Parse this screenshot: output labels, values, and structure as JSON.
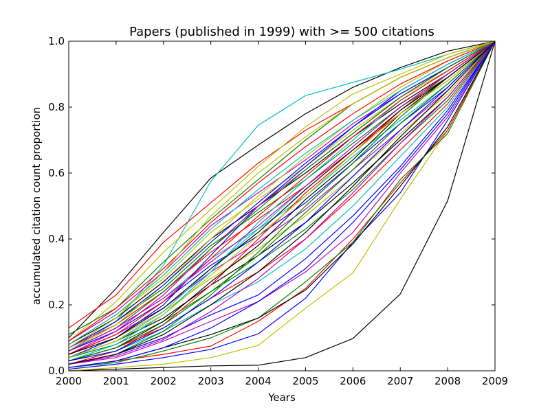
{
  "chart_data": {
    "type": "line",
    "title": "Papers (published in 1999) with >= 500 citations",
    "xlabel": "Years",
    "ylabel": "accumulated citation count proportion",
    "x": [
      2000,
      2001,
      2002,
      2003,
      2004,
      2005,
      2006,
      2007,
      2008,
      2009
    ],
    "xlim": [
      2000,
      2009
    ],
    "ylim": [
      0.0,
      1.0
    ],
    "xticks": [
      "2000",
      "2001",
      "2002",
      "2003",
      "2004",
      "2005",
      "2006",
      "2007",
      "2008",
      "2009"
    ],
    "yticks": [
      "0.0",
      "0.2",
      "0.4",
      "0.6",
      "0.8",
      "1.0"
    ],
    "grid": false,
    "legend": "none",
    "series": [
      {
        "color": "#000000",
        "values": [
          0.0,
          0.005,
          0.01,
          0.015,
          0.017,
          0.04,
          0.098,
          0.233,
          0.516,
          1.0
        ]
      },
      {
        "color": "#000000",
        "values": [
          0.1,
          0.25,
          0.42,
          0.585,
          0.685,
          0.78,
          0.86,
          0.92,
          0.97,
          1.0
        ]
      },
      {
        "color": "#00bfbf",
        "values": [
          0.06,
          0.15,
          0.32,
          0.575,
          0.745,
          0.835,
          0.875,
          0.915,
          0.96,
          1.0
        ]
      },
      {
        "color": "#ff0000",
        "values": [
          0.13,
          0.23,
          0.39,
          0.51,
          0.63,
          0.73,
          0.81,
          0.89,
          0.95,
          1.0
        ]
      },
      {
        "color": "#bfbf00",
        "values": [
          0.09,
          0.21,
          0.36,
          0.49,
          0.62,
          0.74,
          0.84,
          0.9,
          0.96,
          1.0
        ]
      },
      {
        "color": "#008000",
        "values": [
          0.11,
          0.19,
          0.33,
          0.46,
          0.58,
          0.7,
          0.81,
          0.89,
          0.95,
          1.0
        ]
      },
      {
        "color": "#bfbf00",
        "values": [
          0.0,
          0.01,
          0.02,
          0.04,
          0.077,
          0.19,
          0.297,
          0.52,
          0.73,
          1.0
        ]
      },
      {
        "color": "#0000ff",
        "values": [
          0.005,
          0.02,
          0.04,
          0.065,
          0.112,
          0.22,
          0.39,
          0.54,
          0.76,
          1.0
        ]
      },
      {
        "color": "#ff0000",
        "values": [
          0.01,
          0.03,
          0.05,
          0.075,
          0.15,
          0.25,
          0.4,
          0.57,
          0.73,
          1.0
        ]
      },
      {
        "color": "#008000",
        "values": [
          0.01,
          0.025,
          0.06,
          0.1,
          0.16,
          0.27,
          0.39,
          0.58,
          0.72,
          1.0
        ]
      },
      {
        "color": "#000000",
        "values": [
          0.01,
          0.03,
          0.07,
          0.11,
          0.16,
          0.245,
          0.385,
          0.56,
          0.74,
          1.0
        ]
      },
      {
        "color": "#bf00bf",
        "values": [
          0.02,
          0.04,
          0.09,
          0.15,
          0.21,
          0.3,
          0.42,
          0.6,
          0.77,
          1.0
        ]
      },
      {
        "color": "#0000ff",
        "values": [
          0.02,
          0.05,
          0.1,
          0.17,
          0.23,
          0.34,
          0.47,
          0.62,
          0.79,
          1.0
        ]
      },
      {
        "color": "#00bfbf",
        "values": [
          0.03,
          0.06,
          0.12,
          0.2,
          0.27,
          0.37,
          0.5,
          0.65,
          0.8,
          1.0
        ]
      },
      {
        "color": "#ff0000",
        "values": [
          0.03,
          0.07,
          0.13,
          0.22,
          0.3,
          0.4,
          0.53,
          0.67,
          0.81,
          1.0
        ]
      },
      {
        "color": "#008000",
        "values": [
          0.04,
          0.08,
          0.15,
          0.24,
          0.33,
          0.43,
          0.55,
          0.69,
          0.82,
          1.0
        ]
      },
      {
        "color": "#000000",
        "values": [
          0.04,
          0.09,
          0.16,
          0.26,
          0.35,
          0.45,
          0.57,
          0.7,
          0.83,
          1.0
        ]
      },
      {
        "color": "#bfbf00",
        "values": [
          0.05,
          0.1,
          0.18,
          0.28,
          0.37,
          0.47,
          0.59,
          0.72,
          0.84,
          1.0
        ]
      },
      {
        "color": "#bf00bf",
        "values": [
          0.05,
          0.11,
          0.19,
          0.3,
          0.39,
          0.49,
          0.61,
          0.73,
          0.85,
          1.0
        ]
      },
      {
        "color": "#0000ff",
        "values": [
          0.06,
          0.12,
          0.21,
          0.32,
          0.41,
          0.51,
          0.63,
          0.75,
          0.86,
          1.0
        ]
      },
      {
        "color": "#00bfbf",
        "values": [
          0.06,
          0.13,
          0.22,
          0.34,
          0.43,
          0.53,
          0.65,
          0.76,
          0.87,
          1.0
        ]
      },
      {
        "color": "#ff0000",
        "values": [
          0.07,
          0.14,
          0.24,
          0.36,
          0.46,
          0.56,
          0.67,
          0.78,
          0.88,
          1.0
        ]
      },
      {
        "color": "#008000",
        "values": [
          0.07,
          0.15,
          0.25,
          0.38,
          0.48,
          0.58,
          0.69,
          0.8,
          0.89,
          1.0
        ]
      },
      {
        "color": "#000000",
        "values": [
          0.08,
          0.16,
          0.27,
          0.4,
          0.5,
          0.6,
          0.71,
          0.81,
          0.9,
          1.0
        ]
      },
      {
        "color": "#bfbf00",
        "values": [
          0.08,
          0.17,
          0.28,
          0.42,
          0.52,
          0.62,
          0.73,
          0.83,
          0.91,
          1.0
        ]
      },
      {
        "color": "#bf00bf",
        "values": [
          0.09,
          0.18,
          0.3,
          0.44,
          0.54,
          0.64,
          0.75,
          0.84,
          0.92,
          1.0
        ]
      },
      {
        "color": "#0000ff",
        "values": [
          0.04,
          0.1,
          0.2,
          0.35,
          0.5,
          0.62,
          0.74,
          0.85,
          0.93,
          1.0
        ]
      },
      {
        "color": "#00bfbf",
        "values": [
          0.03,
          0.08,
          0.17,
          0.3,
          0.45,
          0.58,
          0.7,
          0.82,
          0.91,
          1.0
        ]
      },
      {
        "color": "#ff0000",
        "values": [
          0.02,
          0.06,
          0.14,
          0.26,
          0.4,
          0.54,
          0.66,
          0.79,
          0.9,
          1.0
        ]
      },
      {
        "color": "#008000",
        "values": [
          0.02,
          0.05,
          0.12,
          0.23,
          0.36,
          0.5,
          0.63,
          0.77,
          0.89,
          1.0
        ]
      },
      {
        "color": "#000000",
        "values": [
          0.03,
          0.07,
          0.15,
          0.27,
          0.38,
          0.52,
          0.64,
          0.78,
          0.89,
          1.0
        ]
      },
      {
        "color": "#bfbf00",
        "values": [
          0.06,
          0.14,
          0.26,
          0.4,
          0.53,
          0.65,
          0.76,
          0.86,
          0.94,
          1.0
        ]
      },
      {
        "color": "#bf00bf",
        "values": [
          0.05,
          0.12,
          0.23,
          0.37,
          0.5,
          0.61,
          0.72,
          0.83,
          0.92,
          1.0
        ]
      },
      {
        "color": "#0000ff",
        "values": [
          0.07,
          0.15,
          0.26,
          0.39,
          0.51,
          0.63,
          0.74,
          0.84,
          0.92,
          1.0
        ]
      },
      {
        "color": "#00bfbf",
        "values": [
          0.04,
          0.09,
          0.18,
          0.31,
          0.43,
          0.56,
          0.68,
          0.8,
          0.9,
          1.0
        ]
      },
      {
        "color": "#ff0000",
        "values": [
          0.05,
          0.11,
          0.21,
          0.34,
          0.47,
          0.59,
          0.71,
          0.82,
          0.91,
          1.0
        ]
      },
      {
        "color": "#008000",
        "values": [
          0.06,
          0.13,
          0.24,
          0.37,
          0.49,
          0.61,
          0.72,
          0.83,
          0.92,
          1.0
        ]
      },
      {
        "color": "#0000ff",
        "values": [
          0.01,
          0.03,
          0.07,
          0.13,
          0.21,
          0.31,
          0.45,
          0.61,
          0.78,
          1.0
        ]
      },
      {
        "color": "#bf00bf",
        "values": [
          0.02,
          0.045,
          0.095,
          0.18,
          0.28,
          0.4,
          0.54,
          0.69,
          0.83,
          1.0
        ]
      },
      {
        "color": "#bfbf00",
        "values": [
          0.04,
          0.09,
          0.17,
          0.29,
          0.41,
          0.53,
          0.66,
          0.78,
          0.88,
          1.0
        ]
      },
      {
        "color": "#000000",
        "values": [
          0.05,
          0.1,
          0.19,
          0.31,
          0.42,
          0.55,
          0.67,
          0.79,
          0.89,
          1.0
        ]
      },
      {
        "color": "#00bfbf",
        "values": [
          0.08,
          0.17,
          0.29,
          0.43,
          0.55,
          0.66,
          0.76,
          0.85,
          0.93,
          1.0
        ]
      },
      {
        "color": "#ff0000",
        "values": [
          0.09,
          0.19,
          0.31,
          0.45,
          0.57,
          0.68,
          0.78,
          0.87,
          0.94,
          1.0
        ]
      },
      {
        "color": "#008000",
        "values": [
          0.03,
          0.07,
          0.14,
          0.24,
          0.35,
          0.48,
          0.61,
          0.75,
          0.87,
          1.0
        ]
      },
      {
        "color": "#0000ff",
        "values": [
          0.03,
          0.06,
          0.13,
          0.22,
          0.33,
          0.45,
          0.59,
          0.73,
          0.86,
          1.0
        ]
      },
      {
        "color": "#bf00bf",
        "values": [
          0.06,
          0.13,
          0.22,
          0.33,
          0.44,
          0.56,
          0.68,
          0.8,
          0.9,
          1.0
        ]
      },
      {
        "color": "#bfbf00",
        "values": [
          0.07,
          0.16,
          0.3,
          0.47,
          0.6,
          0.71,
          0.81,
          0.89,
          0.95,
          1.0
        ]
      },
      {
        "color": "#000000",
        "values": [
          0.02,
          0.05,
          0.11,
          0.2,
          0.3,
          0.42,
          0.56,
          0.71,
          0.85,
          1.0
        ]
      }
    ]
  }
}
